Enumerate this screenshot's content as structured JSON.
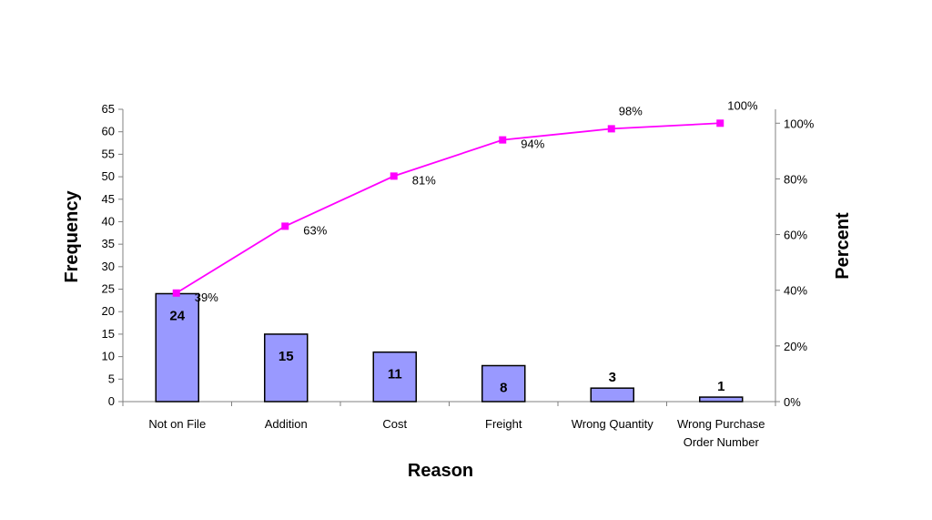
{
  "chart_data": {
    "type": "bar",
    "title": "",
    "xlabel": "Reason",
    "ylabel": "Frequency",
    "y2label": "Percent",
    "categories": [
      "Not on File",
      "Addition",
      "Cost",
      "Freight",
      "Wrong Quantity",
      "Wrong Purchase Order Number"
    ],
    "category_lines": [
      [
        "Not on File"
      ],
      [
        "Addition"
      ],
      [
        "Cost"
      ],
      [
        "Freight"
      ],
      [
        "Wrong Quantity"
      ],
      [
        "Wrong Purchase",
        "Order Number"
      ]
    ],
    "series": [
      {
        "type": "bar",
        "values": [
          24,
          15,
          11,
          8,
          3,
          1
        ]
      },
      {
        "type": "line",
        "axis": "right",
        "values": [
          39,
          63,
          81,
          94,
          98,
          100
        ]
      }
    ],
    "bar_labels": [
      "24",
      "15",
      "11",
      "8",
      "3",
      "1"
    ],
    "pct_labels": [
      "39%",
      "63%",
      "81%",
      "94%",
      "98%",
      "100%"
    ],
    "ylim": [
      0,
      65
    ],
    "yticks": [
      "0",
      "5",
      "10",
      "15",
      "20",
      "25",
      "30",
      "35",
      "40",
      "45",
      "50",
      "55",
      "60",
      "65"
    ],
    "y2lim": [
      0,
      105
    ],
    "y2ticks": [
      "0%",
      "20%",
      "40%",
      "60%",
      "80%",
      "100%"
    ],
    "colors": {
      "bar_fill": "#9999ff",
      "bar_stroke": "#000000",
      "line": "#ff00ff",
      "marker": "#ff00ff"
    },
    "grid": false,
    "legend": "none"
  }
}
